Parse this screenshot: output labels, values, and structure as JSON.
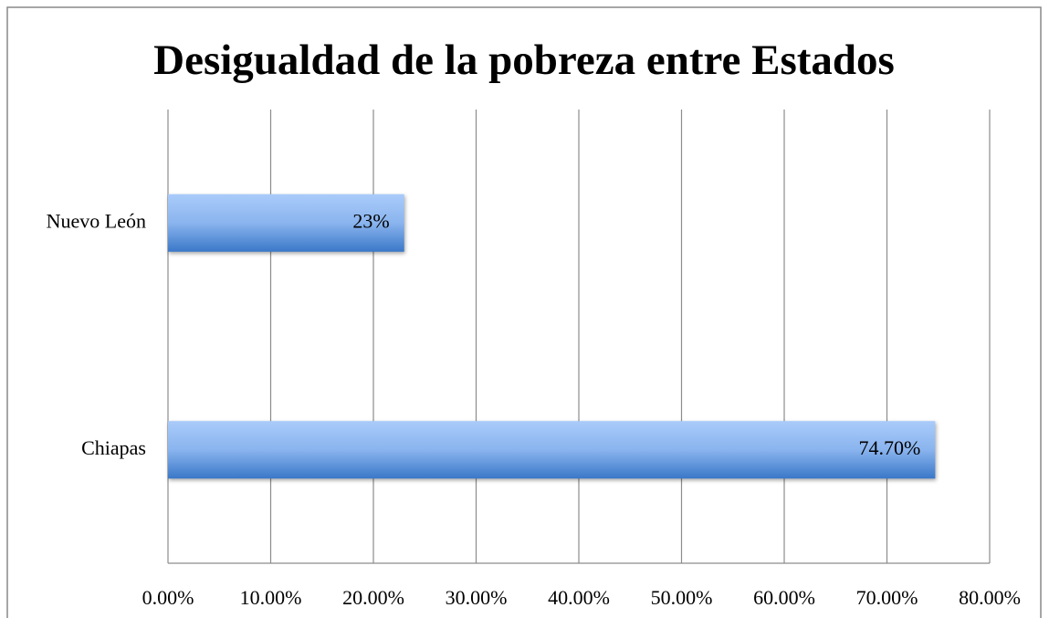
{
  "chart_data": {
    "type": "barh",
    "title": "Desigualdad de la pobreza entre Estados",
    "categories": [
      "Nuevo León",
      "Chiapas"
    ],
    "values": [
      23,
      74.7
    ],
    "value_labels": [
      "23%",
      "74.70%"
    ],
    "color": "#3a78c8",
    "xlim": [
      0,
      80
    ],
    "xticks": [
      {
        "value": 0,
        "label": "0.00%"
      },
      {
        "value": 10,
        "label": "10.00%"
      },
      {
        "value": 20,
        "label": "20.00%"
      },
      {
        "value": 30,
        "label": "30.00%"
      },
      {
        "value": 40,
        "label": "40.00%"
      },
      {
        "value": 50,
        "label": "50.00%"
      },
      {
        "value": 60,
        "label": "60.00%"
      },
      {
        "value": 70,
        "label": "70.00%"
      },
      {
        "value": 80,
        "label": "80.00%"
      }
    ],
    "grid": true
  }
}
